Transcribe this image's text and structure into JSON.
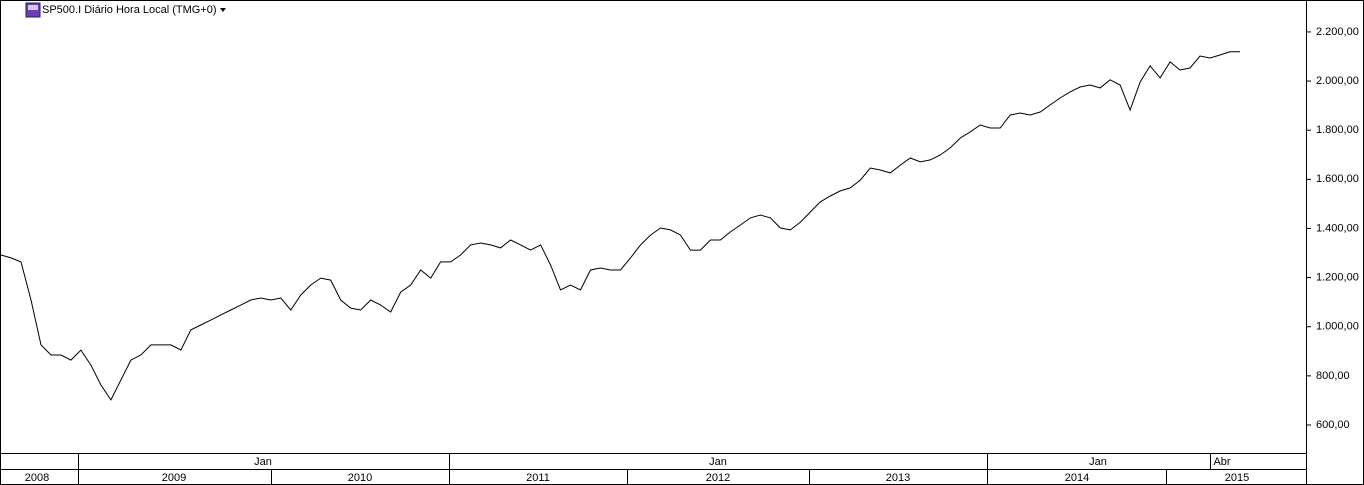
{
  "chart_data": {
    "type": "line",
    "title": "SP500.I Diário Hora Local (TMG+0)",
    "color": "#000000",
    "values": [
      1292,
      1280,
      1264,
      1109,
      926,
      885,
      885,
      864,
      905,
      844,
      763,
      702,
      783,
      864,
      885,
      926,
      926,
      926,
      905,
      987,
      1007,
      1027,
      1048,
      1068,
      1088,
      1109,
      1117,
      1109,
      1117,
      1068,
      1129,
      1170,
      1198,
      1190,
      1109,
      1076,
      1068,
      1109,
      1088,
      1060,
      1141,
      1170,
      1231,
      1198,
      1264,
      1264,
      1292,
      1333,
      1341,
      1333,
      1321,
      1353,
      1333,
      1312,
      1333,
      1251,
      1150,
      1170,
      1150,
      1231,
      1239,
      1231,
      1231,
      1280,
      1333,
      1373,
      1402,
      1394,
      1373,
      1312,
      1312,
      1353,
      1353,
      1386,
      1414,
      1443,
      1455,
      1443,
      1402,
      1394,
      1426,
      1467,
      1508,
      1532,
      1553,
      1565,
      1597,
      1646,
      1638,
      1626,
      1658,
      1687,
      1671,
      1679,
      1699,
      1728,
      1768,
      1793,
      1821,
      1809,
      1809,
      1862,
      1870,
      1862,
      1874,
      1903,
      1931,
      1956,
      1976,
      1984,
      1972,
      2005,
      1984,
      1882,
      1996,
      2062,
      2013,
      2078,
      2045,
      2053,
      2102,
      2094,
      2106,
      2119,
      2119
    ],
    "ylim": [
      486,
      2330
    ],
    "yticks": [
      {
        "value": 600,
        "label": "600,00"
      },
      {
        "value": 800,
        "label": "800,00"
      },
      {
        "value": 1000,
        "label": "1.000,00"
      },
      {
        "value": 1200,
        "label": "1.200,00"
      },
      {
        "value": 1400,
        "label": "1.400,00"
      },
      {
        "value": 1600,
        "label": "1.600,00"
      },
      {
        "value": 1800,
        "label": "1.800,00"
      },
      {
        "value": 2000,
        "label": "2.000,00"
      },
      {
        "value": 2200,
        "label": "2.200,00"
      }
    ],
    "grid": false,
    "x_labels_upper": [
      "Jan",
      "Jan",
      "Jan",
      "Abr"
    ],
    "x_labels_lower": [
      "2008",
      "2009",
      "2010",
      "2011",
      "2012",
      "2013",
      "2014",
      "2015"
    ]
  }
}
